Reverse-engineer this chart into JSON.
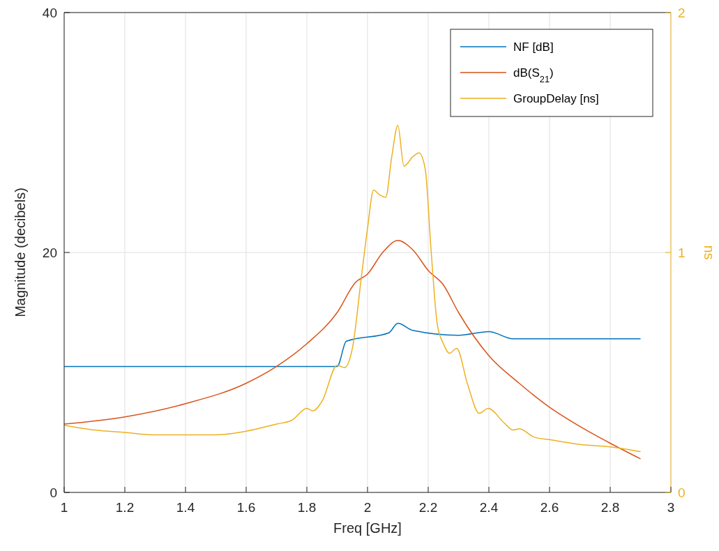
{
  "chart_data": {
    "type": "line",
    "xlabel": "Freq [GHz]",
    "ylabel": "Magnitude (decibels)",
    "y2label": "ns",
    "xlim": [
      1,
      3
    ],
    "xticks": [
      1,
      1.2,
      1.4,
      1.6,
      1.8,
      2,
      2.2,
      2.4,
      2.6,
      2.8,
      3
    ],
    "ylim": [
      0,
      40
    ],
    "yticks": [
      0,
      20,
      40
    ],
    "y2lim": [
      0,
      2
    ],
    "y2ticks": [
      0,
      1,
      2
    ],
    "grid": true,
    "legend": "top right",
    "line_style": "solid",
    "marker": "none",
    "series": [
      {
        "name": "NF [dB]",
        "color": "#0072bd",
        "x": [
          1,
          1.9,
          1.93,
          2.07,
          2.1,
          2.15,
          2.3,
          2.4,
          2.48,
          2.9
        ],
        "values": [
          10.5,
          10.5,
          12.6,
          13.3,
          14.1,
          13.5,
          13.1,
          13.4,
          12.8,
          12.8
        ]
      },
      {
        "name": "dB(S$_{21}$)",
        "color": "#d95319",
        "x": [
          1,
          1.2,
          1.4,
          1.6,
          1.7,
          1.8,
          1.9,
          1.96,
          2,
          2.05,
          2.1,
          2.15,
          2.2,
          2.25,
          2.3,
          2.4,
          2.5,
          2.6,
          2.7,
          2.8,
          2.9
        ],
        "values": [
          5.7,
          6.3,
          7.4,
          9.1,
          10.5,
          12.4,
          15,
          17.5,
          18.2,
          20,
          21,
          20.2,
          18.5,
          17.3,
          15,
          11.4,
          9.1,
          7.1,
          5.5,
          4.1,
          2.8
        ]
      },
      {
        "name": "GroupDelay [ns]",
        "color": "#edb120",
        "axis": "y2",
        "x": [
          1,
          1.1,
          1.2,
          1.3,
          1.4,
          1.5,
          1.6,
          1.7,
          1.75,
          1.8,
          1.82,
          1.85,
          1.9,
          1.924,
          1.95,
          1.98,
          2,
          2.02,
          2.04,
          2.06,
          2.08,
          2.1,
          2.12,
          2.15,
          2.17,
          2.19,
          2.21,
          2.23,
          2.25,
          2.27,
          2.294,
          2.33,
          2.368,
          2.398,
          2.45,
          2.48,
          2.5,
          2.55,
          2.6,
          2.7,
          2.8,
          2.9
        ],
        "values": [
          0.28,
          0.26,
          0.25,
          0.24,
          0.24,
          0.24,
          0.255,
          0.285,
          0.3,
          0.35,
          0.34,
          0.38,
          0.53,
          0.52,
          0.6,
          0.9,
          1.1,
          1.26,
          1.24,
          1.23,
          1.4,
          1.53,
          1.36,
          1.4,
          1.415,
          1.35,
          1,
          0.7,
          0.62,
          0.58,
          0.6,
          0.45,
          0.33,
          0.35,
          0.29,
          0.26,
          0.265,
          0.23,
          0.22,
          0.2,
          0.19,
          0.17
        ]
      }
    ]
  }
}
